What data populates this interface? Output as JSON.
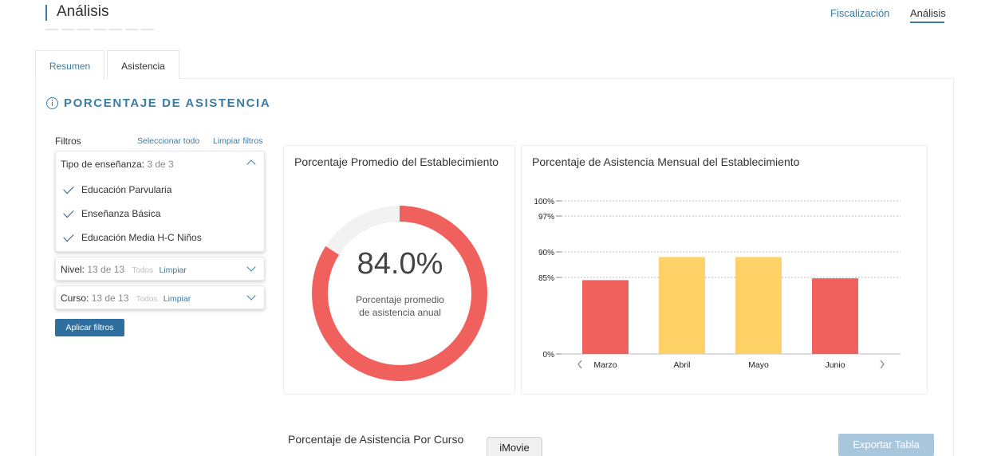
{
  "header": {
    "title": "Análisis",
    "nav": [
      {
        "label": "Fiscalización"
      },
      {
        "label": "Análisis",
        "active": true
      }
    ]
  },
  "tabs": [
    {
      "label": "Resumen"
    },
    {
      "label": "Asistencia",
      "active": true
    }
  ],
  "section": {
    "title": "PORCENTAJE DE ASISTENCIA",
    "icon": "info-icon"
  },
  "filters": {
    "label": "Filtros",
    "select_all": "Seleccionar todo",
    "clear_filters": "Limpiar filtros",
    "tipo": {
      "label": "Tipo de enseñanza:",
      "count": "3 de 3",
      "options": [
        {
          "label": "Educación Parvularia",
          "checked": true
        },
        {
          "label": "Enseñanza Básica",
          "checked": true
        },
        {
          "label": "Educación Media H-C Niños",
          "checked": true
        }
      ]
    },
    "nivel": {
      "label": "Nivel:",
      "count": "13 de 13",
      "todos": "Todos",
      "limpiar": "Limpiar"
    },
    "curso": {
      "label": "Curso:",
      "count": "13 de 13",
      "todos": "Todos",
      "limpiar": "Limpiar"
    },
    "apply": "Aplicar filtros"
  },
  "donut": {
    "title": "Porcentaje Promedio del Establecimiento",
    "value_label": "84.0%",
    "value": 84.0,
    "subtitle_line1": "Porcentaje promedio",
    "subtitle_line2": "de asistencia anual",
    "color": "#f0615e",
    "track_color": "#f2f2f2"
  },
  "chart_data": {
    "type": "bar",
    "title": "Porcentaje de Asistencia Mensual del Establecimiento",
    "categories": [
      "Marzo",
      "Abril",
      "Mayo",
      "Junio"
    ],
    "values": [
      82,
      89,
      89,
      84
    ],
    "colors": [
      "#f0615e",
      "#ffd166",
      "#ffd166",
      "#f0615e"
    ],
    "ytick_labels": [
      "100%",
      "97%",
      "90%",
      "85%",
      "0%"
    ],
    "yticks": [
      100,
      97,
      90,
      85,
      0
    ],
    "grid": "dotted horizontal at ticks",
    "xlabel": "",
    "ylabel": ""
  },
  "bottom": {
    "title": "Porcentaje de Asistencia Por Curso",
    "export": "Exportar Tabla",
    "dock_label": "iMovie"
  }
}
